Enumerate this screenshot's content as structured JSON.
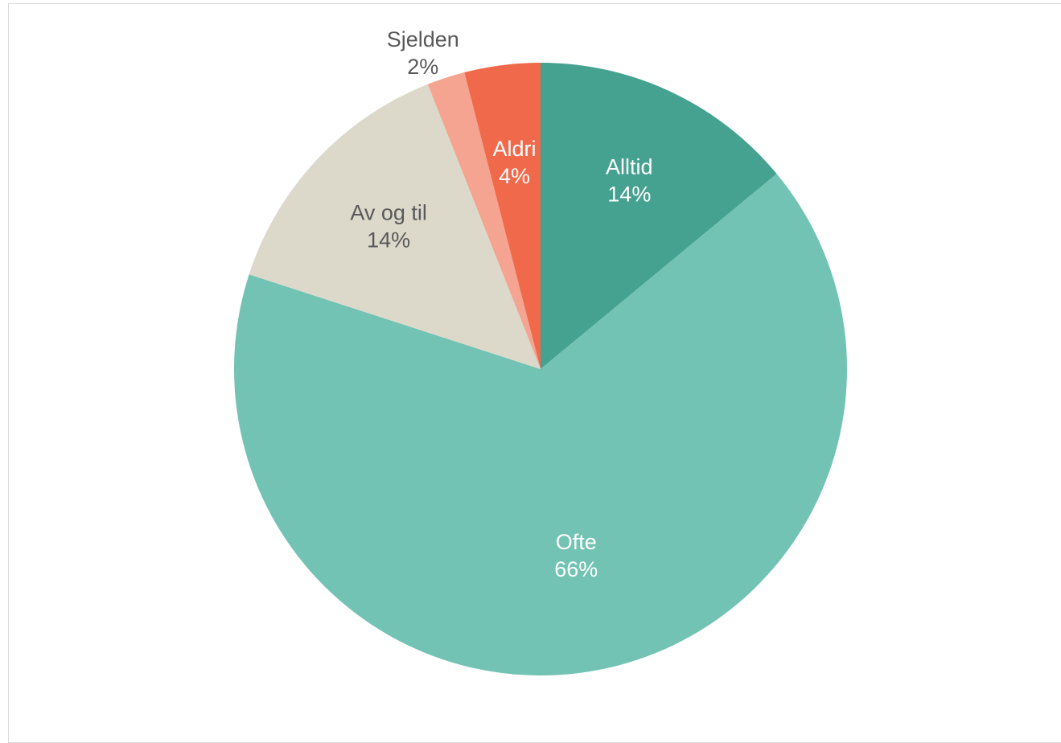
{
  "chart_data": {
    "type": "pie",
    "title": "",
    "start_angle_deg": 0,
    "direction": "clockwise",
    "slices": [
      {
        "label": "Alltid",
        "value": 14,
        "value_label": "14%",
        "color": "#45a190",
        "label_color": "#ffffff",
        "label_position": "inside"
      },
      {
        "label": "Ofte",
        "value": 66,
        "value_label": "66%",
        "color": "#72c3b4",
        "label_color": "#ffffff",
        "label_position": "inside"
      },
      {
        "label": "Av og til",
        "value": 14,
        "value_label": "14%",
        "color": "#dcd9cb",
        "label_color": "#595959",
        "label_position": "inside"
      },
      {
        "label": "Sjelden",
        "value": 2,
        "value_label": "2%",
        "color": "#f4a491",
        "label_color": "#595959",
        "label_position": "outside"
      },
      {
        "label": "Aldri",
        "value": 4,
        "value_label": "4%",
        "color": "#f0694b",
        "label_color": "#ffffff",
        "label_position": "inside"
      }
    ],
    "legend": "none"
  }
}
